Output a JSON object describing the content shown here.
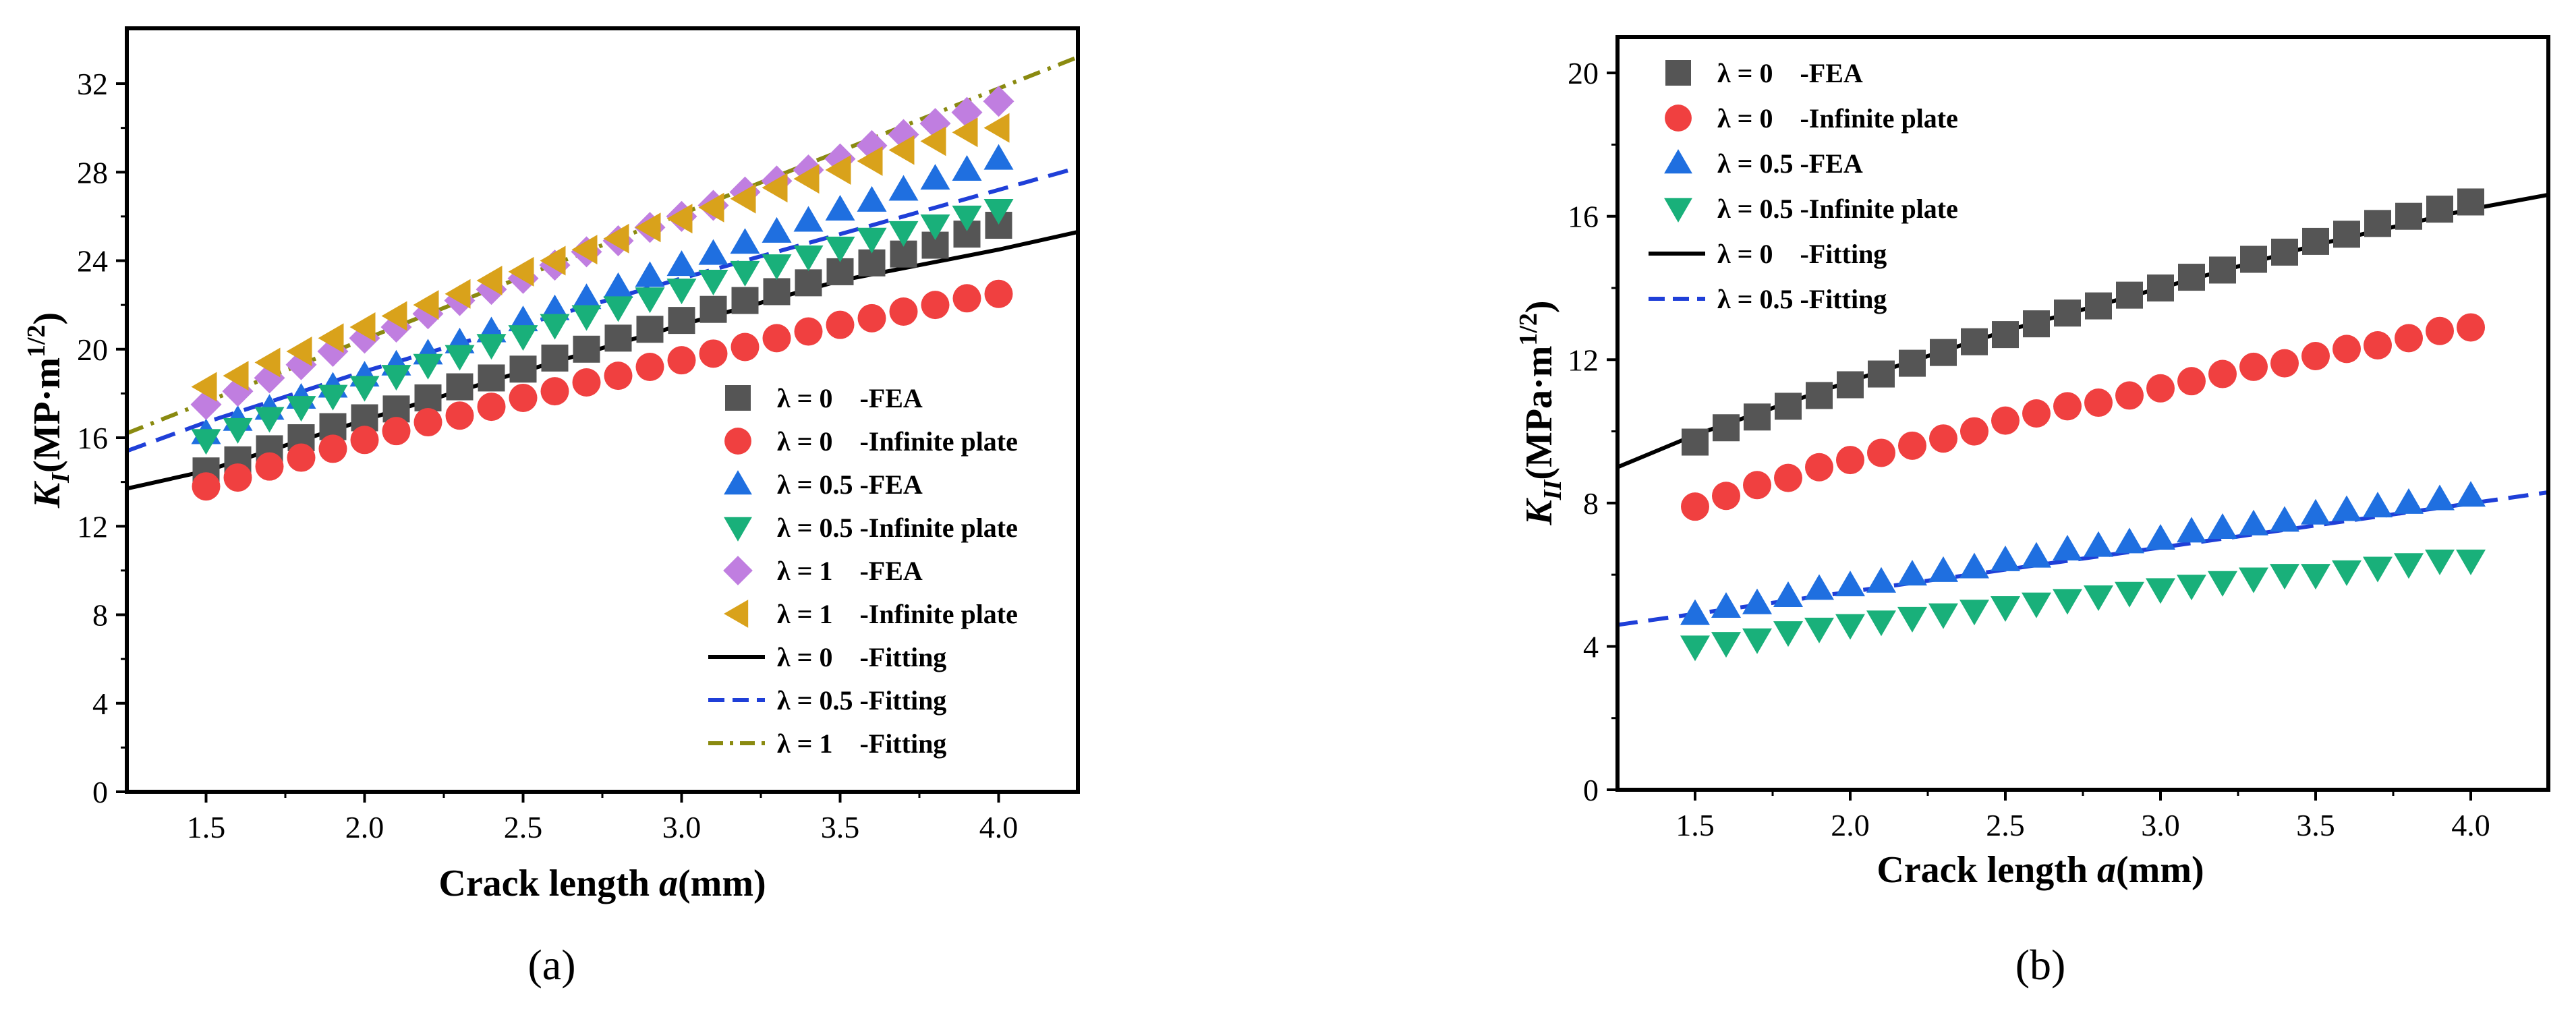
{
  "chart_data": [
    {
      "type": "scatter",
      "panel_label": "(a)",
      "xlabel": "Crack length a(mm)",
      "xlabel_main": "Crack length ",
      "xlabel_var": "a",
      "xlabel_unit": "(mm)",
      "ylabel": "K_I(MP·m^1/2)",
      "ylabel_K": "K",
      "ylabel_sub": "I",
      "ylabel_unit": "(MP·m",
      "ylabel_sup": "1/2",
      "ylabel_close": ")",
      "xlim": [
        1.25,
        4.25
      ],
      "ylim": [
        0,
        34.5
      ],
      "xticks": [
        1.5,
        2.0,
        2.5,
        3.0,
        3.5,
        4.0
      ],
      "xtick_labels": [
        "1.5",
        "2.0",
        "2.5",
        "3.0",
        "3.5",
        "4.0"
      ],
      "yticks": [
        0,
        4,
        8,
        12,
        16,
        20,
        24,
        28,
        32
      ],
      "ytick_labels": [
        "0",
        "4",
        "8",
        "12",
        "16",
        "20",
        "24",
        "28",
        "32"
      ],
      "legend_position": "bottom-right",
      "x": [
        1.5,
        1.6,
        1.7,
        1.8,
        1.9,
        2.0,
        2.1,
        2.2,
        2.3,
        2.4,
        2.5,
        2.6,
        2.7,
        2.8,
        2.9,
        3.0,
        3.1,
        3.2,
        3.3,
        3.4,
        3.5,
        3.6,
        3.7,
        3.8,
        3.9,
        4.0
      ],
      "series": [
        {
          "name": "λ = 0    -FEA",
          "marker": "square",
          "color": "#555555",
          "values": [
            14.5,
            15.0,
            15.5,
            16.0,
            16.5,
            16.9,
            17.3,
            17.8,
            18.3,
            18.7,
            19.1,
            19.6,
            20.0,
            20.5,
            20.9,
            21.3,
            21.8,
            22.2,
            22.6,
            23.0,
            23.5,
            23.9,
            24.3,
            24.7,
            25.2,
            25.6
          ]
        },
        {
          "name": "λ = 0    -Infinite plate",
          "marker": "circle",
          "color": "#f04040",
          "values": [
            13.8,
            14.2,
            14.7,
            15.1,
            15.5,
            15.9,
            16.3,
            16.7,
            17.0,
            17.4,
            17.8,
            18.1,
            18.5,
            18.8,
            19.2,
            19.5,
            19.8,
            20.1,
            20.5,
            20.8,
            21.1,
            21.4,
            21.7,
            22.0,
            22.3,
            22.5
          ]
        },
        {
          "name": "λ = 0.5 -FEA",
          "marker": "triangle-up",
          "color": "#1f6fe0",
          "values": [
            16.2,
            16.8,
            17.3,
            17.8,
            18.3,
            18.8,
            19.3,
            19.8,
            20.3,
            20.8,
            21.3,
            21.8,
            22.3,
            22.8,
            23.3,
            23.8,
            24.3,
            24.8,
            25.3,
            25.8,
            26.3,
            26.7,
            27.2,
            27.7,
            28.1,
            28.6
          ]
        },
        {
          "name": "λ = 0.5 -Infinite plate",
          "marker": "triangle-down",
          "color": "#19b07a",
          "values": [
            15.9,
            16.4,
            16.9,
            17.4,
            17.9,
            18.3,
            18.8,
            19.3,
            19.7,
            20.2,
            20.6,
            21.1,
            21.5,
            21.9,
            22.3,
            22.7,
            23.1,
            23.5,
            23.8,
            24.2,
            24.6,
            25.0,
            25.3,
            25.6,
            26.0,
            26.3
          ]
        },
        {
          "name": "λ = 1    -FEA",
          "marker": "diamond",
          "color": "#c07ee0",
          "values": [
            17.5,
            18.1,
            18.7,
            19.3,
            19.9,
            20.5,
            21.0,
            21.6,
            22.2,
            22.7,
            23.2,
            23.8,
            24.4,
            24.9,
            25.5,
            26.0,
            26.5,
            27.1,
            27.6,
            28.1,
            28.6,
            29.2,
            29.7,
            30.2,
            30.7,
            31.2
          ]
        },
        {
          "name": "λ = 1    -Infinite plate",
          "marker": "triangle-left",
          "color": "#d9a21b",
          "values": [
            18.3,
            18.8,
            19.4,
            19.9,
            20.5,
            21.0,
            21.5,
            22.0,
            22.5,
            23.1,
            23.5,
            24.0,
            24.5,
            25.0,
            25.5,
            25.9,
            26.4,
            26.8,
            27.3,
            27.7,
            28.1,
            28.5,
            29.0,
            29.4,
            29.8,
            30.0
          ]
        }
      ],
      "fits": [
        {
          "name": "λ = 0    -Fitting",
          "style": "solid",
          "color": "#000000",
          "x": [
            1.25,
            1.5,
            2.0,
            2.5,
            3.0,
            3.5,
            4.0,
            4.25
          ],
          "values": [
            13.7,
            14.5,
            16.8,
            19.0,
            21.1,
            23.1,
            24.5,
            25.3
          ]
        },
        {
          "name": "λ = 0.5 -Fitting",
          "style": "dashed",
          "color": "#1f3fd8",
          "x": [
            1.25,
            1.5,
            2.0,
            2.5,
            3.0,
            3.5,
            4.0,
            4.25
          ],
          "values": [
            15.4,
            16.7,
            19.0,
            21.1,
            23.2,
            25.2,
            27.2,
            28.2
          ]
        },
        {
          "name": "λ = 1    -Fitting",
          "style": "dashdot",
          "color": "#8a8a10",
          "x": [
            1.25,
            4.25
          ],
          "values": [
            16.2,
            33.2
          ]
        }
      ]
    },
    {
      "type": "scatter",
      "panel_label": "(b)",
      "xlabel": "Crack length a(mm)",
      "xlabel_main": "Crack length ",
      "xlabel_var": "a",
      "xlabel_unit": "(mm)",
      "ylabel": "K_II(MPa·m^1/2)",
      "ylabel_K": "K",
      "ylabel_sub": "II",
      "ylabel_unit": "(MPa·m",
      "ylabel_sup": "1/2",
      "ylabel_close": ")",
      "xlim": [
        1.25,
        4.25
      ],
      "ylim": [
        0,
        21
      ],
      "xticks": [
        1.5,
        2.0,
        2.5,
        3.0,
        3.5,
        4.0
      ],
      "xtick_labels": [
        "1.5",
        "2.0",
        "2.5",
        "3.0",
        "3.5",
        "4.0"
      ],
      "yticks": [
        0,
        4,
        8,
        12,
        16,
        20
      ],
      "ytick_labels": [
        "0",
        "4",
        "8",
        "12",
        "16",
        "20"
      ],
      "legend_position": "top-left",
      "x": [
        1.5,
        1.6,
        1.7,
        1.8,
        1.9,
        2.0,
        2.1,
        2.2,
        2.3,
        2.4,
        2.5,
        2.6,
        2.7,
        2.8,
        2.9,
        3.0,
        3.1,
        3.2,
        3.3,
        3.4,
        3.5,
        3.6,
        3.7,
        3.8,
        3.9,
        4.0
      ],
      "series": [
        {
          "name": "λ = 0    -FEA",
          "marker": "square",
          "color": "#555555",
          "values": [
            9.7,
            10.1,
            10.4,
            10.7,
            11.0,
            11.3,
            11.6,
            11.9,
            12.2,
            12.5,
            12.7,
            13.0,
            13.3,
            13.5,
            13.8,
            14.0,
            14.3,
            14.5,
            14.8,
            15.0,
            15.3,
            15.5,
            15.8,
            16.0,
            16.2,
            16.4
          ]
        },
        {
          "name": "λ = 0    -Infinite plate",
          "marker": "circle",
          "color": "#f04040",
          "values": [
            7.9,
            8.2,
            8.5,
            8.7,
            9.0,
            9.2,
            9.4,
            9.6,
            9.8,
            10.0,
            10.3,
            10.5,
            10.7,
            10.8,
            11.0,
            11.2,
            11.4,
            11.6,
            11.8,
            11.9,
            12.1,
            12.3,
            12.4,
            12.6,
            12.8,
            12.9
          ]
        },
        {
          "name": "λ = 0.5 -FEA",
          "marker": "triangle-up",
          "color": "#1f6fe0",
          "values": [
            4.9,
            5.1,
            5.2,
            5.4,
            5.6,
            5.7,
            5.8,
            6.0,
            6.1,
            6.2,
            6.4,
            6.5,
            6.7,
            6.8,
            6.9,
            7.0,
            7.2,
            7.3,
            7.4,
            7.5,
            7.7,
            7.8,
            7.9,
            8.0,
            8.1,
            8.2
          ]
        },
        {
          "name": "λ = 0.5 -Infinite plate",
          "marker": "triangle-down",
          "color": "#19b07a",
          "values": [
            4.0,
            4.1,
            4.2,
            4.4,
            4.5,
            4.6,
            4.7,
            4.8,
            4.9,
            5.0,
            5.1,
            5.2,
            5.3,
            5.4,
            5.5,
            5.6,
            5.7,
            5.8,
            5.9,
            6.0,
            6.0,
            6.1,
            6.2,
            6.3,
            6.4,
            6.4
          ]
        }
      ],
      "fits": [
        {
          "name": "λ = 0    -Fitting",
          "style": "solid",
          "color": "#000000",
          "x": [
            1.25,
            1.5,
            2.0,
            2.5,
            3.0,
            3.5,
            4.0,
            4.25
          ],
          "values": [
            9.0,
            9.9,
            11.4,
            12.8,
            14.0,
            15.2,
            16.2,
            16.6
          ]
        },
        {
          "name": "λ = 0.5 -Fitting",
          "style": "dashed",
          "color": "#1f3fd8",
          "x": [
            1.25,
            4.25
          ],
          "values": [
            4.6,
            8.3
          ]
        }
      ]
    }
  ]
}
